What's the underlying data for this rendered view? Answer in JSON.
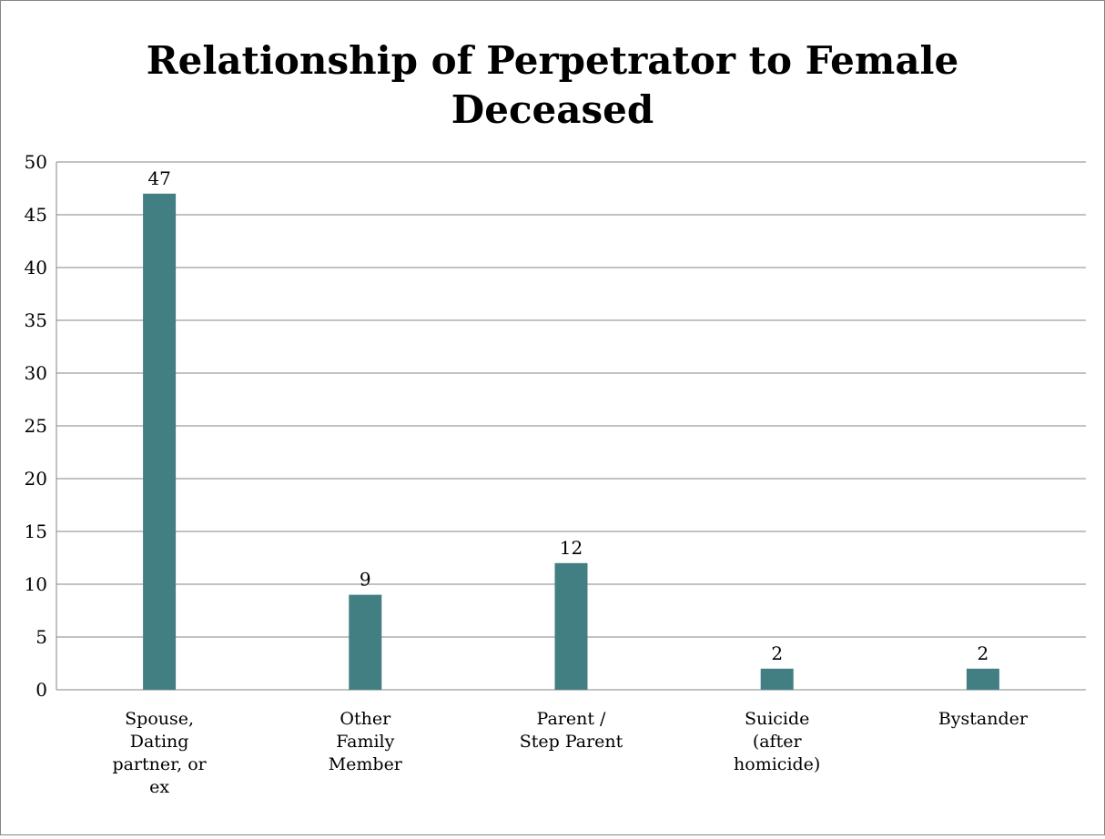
{
  "chart_data": {
    "type": "bar",
    "title": "Relationship of Perpetrator to Female Deceased",
    "categories": [
      "Spouse, Dating partner, or ex",
      "Other Family Member",
      "Parent / Step Parent",
      "Suicide (after homicide)",
      "Bystander"
    ],
    "values": [
      47,
      9,
      12,
      2,
      2
    ],
    "color": "#427f83",
    "ylim": [
      0,
      50
    ],
    "yticks": [
      0,
      5,
      10,
      15,
      20,
      25,
      30,
      35,
      40,
      45,
      50
    ],
    "grid": true
  }
}
